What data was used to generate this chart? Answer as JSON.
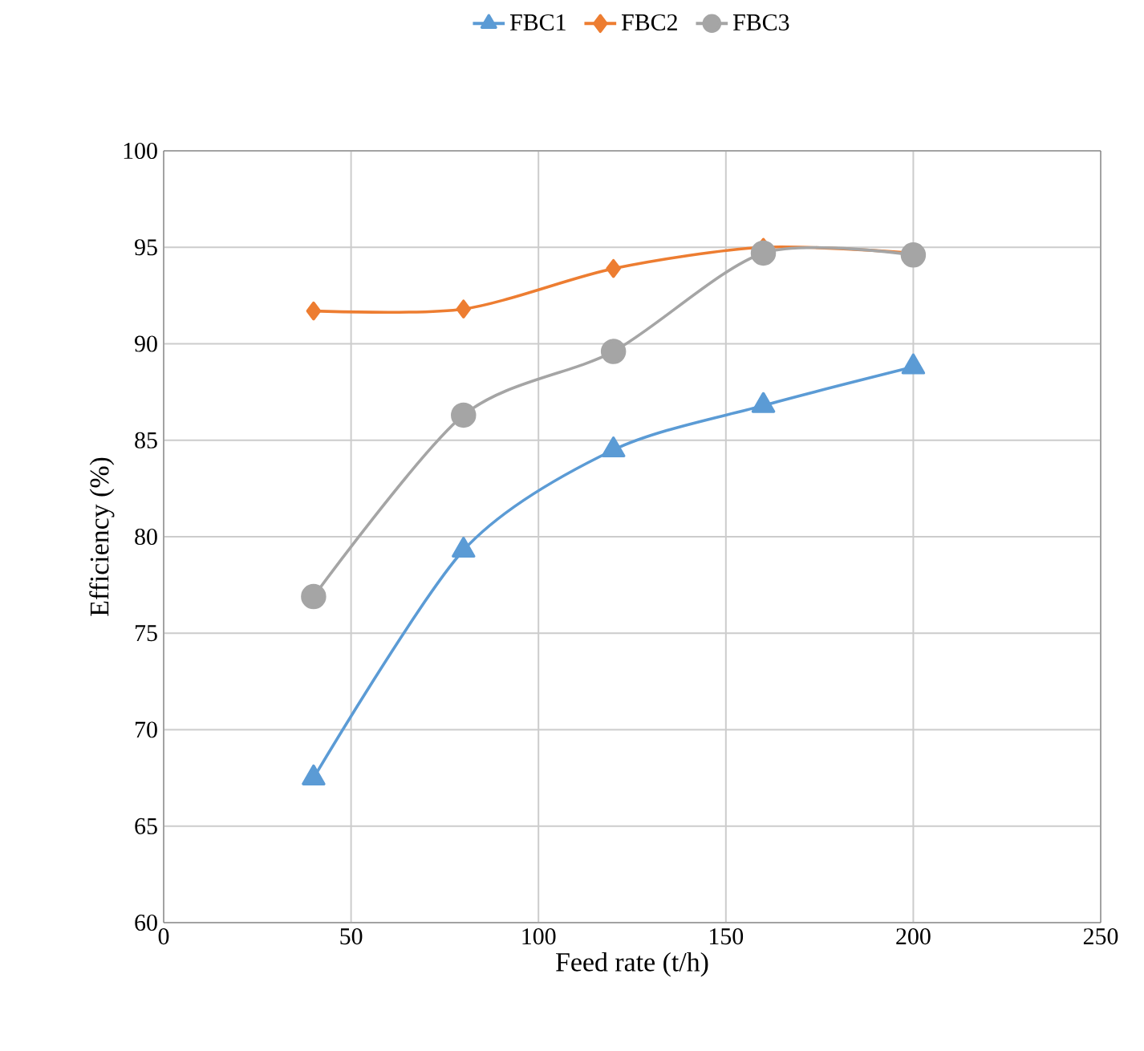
{
  "chart_data": {
    "type": "line",
    "xlabel": "Feed rate (t/h)",
    "ylabel": "Efficiency (%)",
    "xlim": [
      0,
      250
    ],
    "xticks": [
      0,
      50,
      100,
      150,
      200,
      250
    ],
    "ylim": [
      60,
      100
    ],
    "yticks": [
      60,
      65,
      70,
      75,
      80,
      85,
      90,
      95,
      100
    ],
    "grid": true,
    "legend": "top",
    "series": [
      {
        "name": "FBC1",
        "color": "#5b9bd5",
        "marker": "triangle",
        "x": [
          40,
          80,
          120,
          160,
          200
        ],
        "values": [
          67.5,
          79.3,
          84.5,
          86.8,
          88.8
        ]
      },
      {
        "name": "FBC2",
        "color": "#ed7d31",
        "marker": "diamond",
        "x": [
          40,
          80,
          120,
          160,
          200
        ],
        "values": [
          91.7,
          91.8,
          93.9,
          95.0,
          94.7
        ]
      },
      {
        "name": "FBC3",
        "color": "#a5a5a5",
        "marker": "circle",
        "x": [
          40,
          80,
          120,
          160,
          200
        ],
        "values": [
          76.9,
          86.3,
          89.6,
          94.7,
          94.6
        ]
      }
    ]
  }
}
